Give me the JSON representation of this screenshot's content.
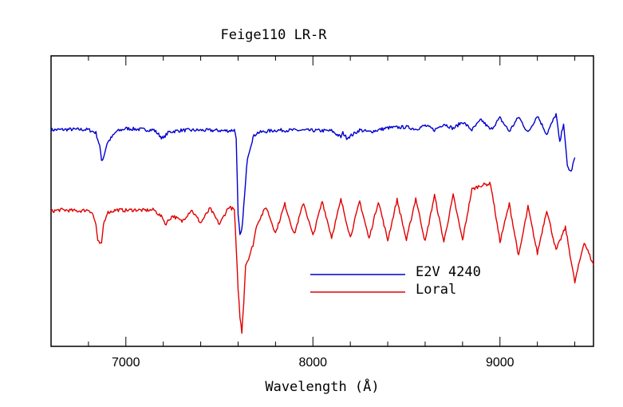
{
  "chart_data": {
    "type": "line",
    "title": "Feige110 LR-R",
    "xlabel": "Wavelength (Å)",
    "ylabel": "",
    "xlim": [
      6600,
      9500
    ],
    "ylim": [
      0,
      1
    ],
    "x_ticks": [
      7000,
      8000,
      9000
    ],
    "x_tick_labels": [
      "7000",
      "8000",
      "9000"
    ],
    "x_minor_step": 200,
    "grid": false,
    "legend_position": "lower-right",
    "series": [
      {
        "name": "E2V 4240",
        "color": "#0000cc",
        "x": [
          6600,
          6700,
          6800,
          6840,
          6860,
          6870,
          6880,
          6900,
          6950,
          7000,
          7050,
          7100,
          7150,
          7190,
          7200,
          7210,
          7230,
          7300,
          7400,
          7500,
          7550,
          7580,
          7590,
          7600,
          7610,
          7620,
          7630,
          7650,
          7680,
          7700,
          7750,
          7800,
          7900,
          8000,
          8100,
          8150,
          8160,
          8180,
          8200,
          8250,
          8300,
          8400,
          8500,
          8550,
          8600,
          8650,
          8700,
          8750,
          8800,
          8850,
          8900,
          8950,
          9000,
          9050,
          9100,
          9150,
          9200,
          9250,
          9300,
          9320,
          9340,
          9360,
          9380,
          9400
        ],
        "y": [
          0.745,
          0.747,
          0.746,
          0.735,
          0.69,
          0.64,
          0.65,
          0.7,
          0.74,
          0.75,
          0.748,
          0.746,
          0.745,
          0.72,
          0.715,
          0.725,
          0.738,
          0.744,
          0.744,
          0.743,
          0.742,
          0.745,
          0.72,
          0.45,
          0.38,
          0.4,
          0.48,
          0.65,
          0.72,
          0.735,
          0.74,
          0.744,
          0.744,
          0.743,
          0.742,
          0.72,
          0.735,
          0.718,
          0.724,
          0.745,
          0.738,
          0.752,
          0.755,
          0.748,
          0.76,
          0.745,
          0.766,
          0.75,
          0.773,
          0.745,
          0.78,
          0.745,
          0.786,
          0.74,
          0.79,
          0.735,
          0.795,
          0.73,
          0.8,
          0.7,
          0.77,
          0.62,
          0.6,
          0.65
        ]
      },
      {
        "name": "Loral",
        "color": "#e00000",
        "x": [
          6600,
          6650,
          6700,
          6750,
          6800,
          6820,
          6840,
          6850,
          6870,
          6880,
          6900,
          6950,
          7000,
          7050,
          7100,
          7150,
          7200,
          7210,
          7250,
          7300,
          7350,
          7400,
          7450,
          7500,
          7550,
          7580,
          7600,
          7610,
          7620,
          7630,
          7640,
          7660,
          7680,
          7700,
          7750,
          7800,
          7850,
          7900,
          7950,
          8000,
          8050,
          8100,
          8150,
          8200,
          8250,
          8300,
          8350,
          8400,
          8450,
          8500,
          8550,
          8600,
          8650,
          8700,
          8750,
          8800,
          8850,
          8900,
          8950,
          9000,
          9050,
          9100,
          9150,
          9200,
          9250,
          9300,
          9350,
          9400,
          9450,
          9500
        ],
        "y": [
          0.465,
          0.47,
          0.468,
          0.466,
          0.47,
          0.46,
          0.42,
          0.36,
          0.35,
          0.42,
          0.46,
          0.47,
          0.468,
          0.47,
          0.468,
          0.47,
          0.44,
          0.42,
          0.45,
          0.43,
          0.47,
          0.425,
          0.475,
          0.42,
          0.48,
          0.47,
          0.2,
          0.1,
          0.05,
          0.15,
          0.28,
          0.31,
          0.35,
          0.42,
          0.48,
          0.39,
          0.49,
          0.385,
          0.495,
          0.38,
          0.5,
          0.375,
          0.505,
          0.375,
          0.5,
          0.37,
          0.5,
          0.365,
          0.505,
          0.365,
          0.51,
          0.36,
          0.52,
          0.36,
          0.52,
          0.365,
          0.54,
          0.555,
          0.56,
          0.36,
          0.49,
          0.31,
          0.48,
          0.32,
          0.47,
          0.33,
          0.41,
          0.22,
          0.36,
          0.28
        ]
      }
    ],
    "legend": [
      {
        "label": "E2V 4240",
        "color": "#0000cc"
      },
      {
        "label": "Loral",
        "color": "#e00000"
      }
    ]
  }
}
